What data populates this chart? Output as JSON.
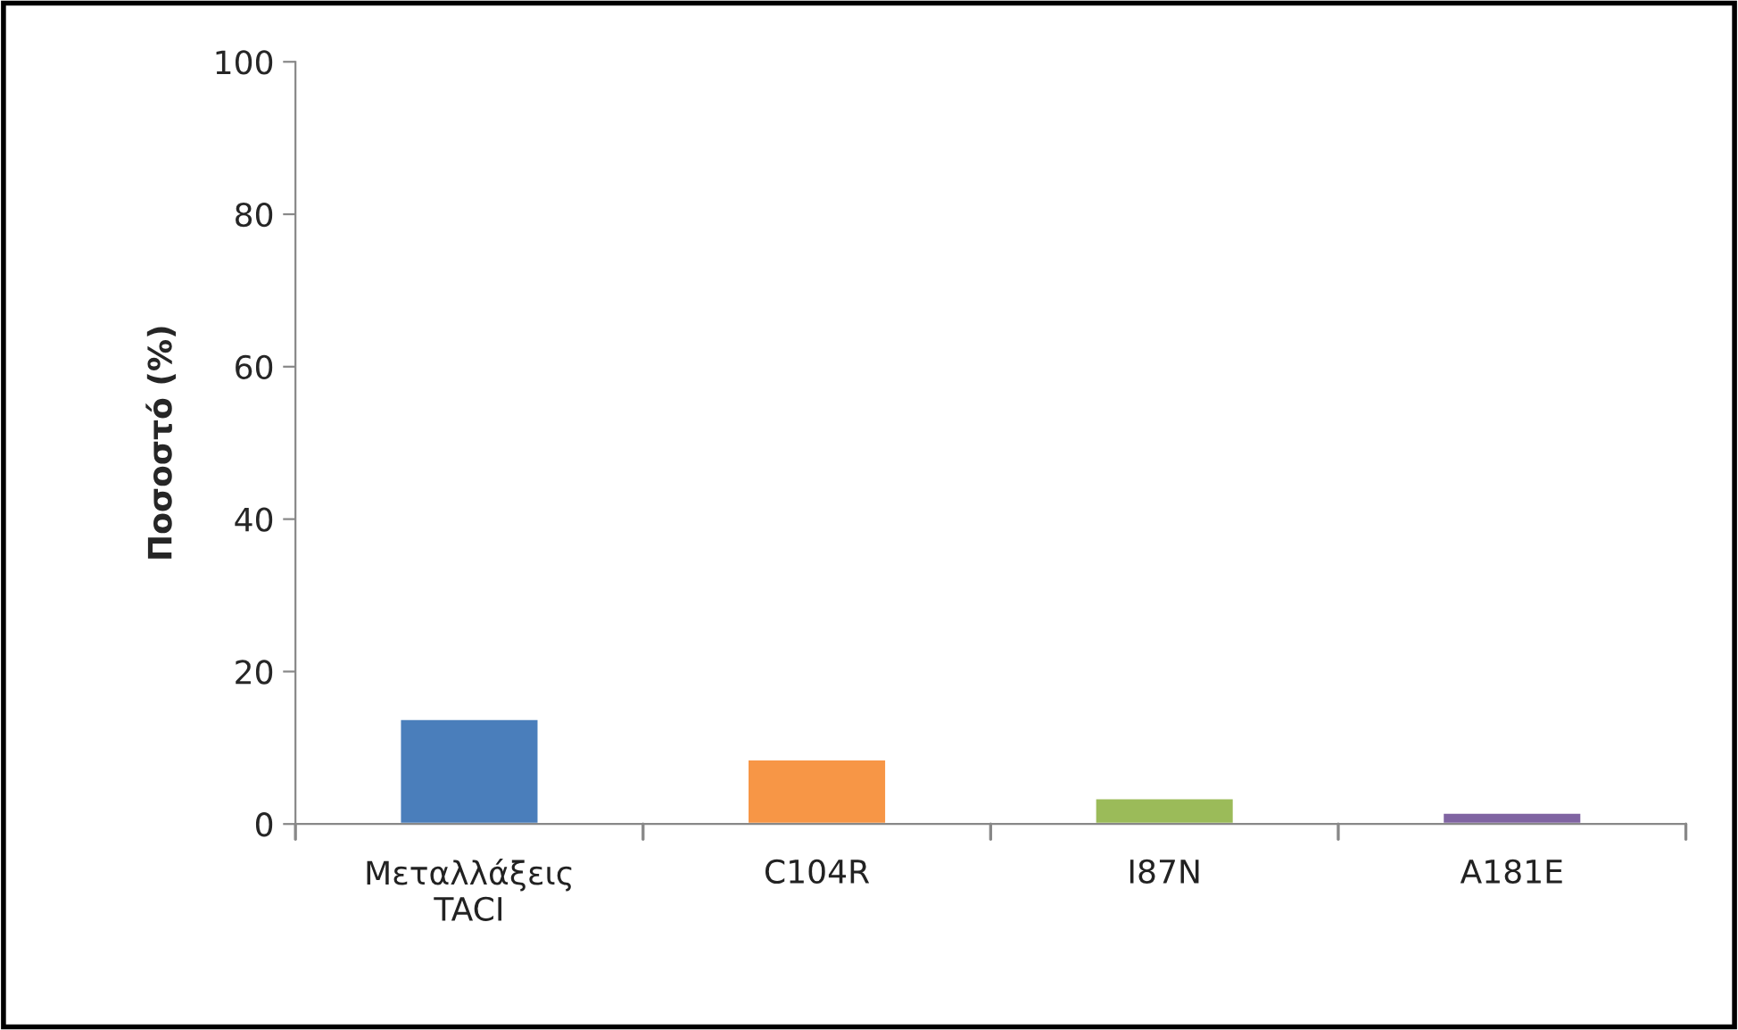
{
  "chart_data": {
    "type": "bar",
    "ylabel": "Ποσοστό (%)",
    "categories": [
      "Μεταλλάξεις\nTACI",
      "C104R",
      "I87N",
      "A181E"
    ],
    "values": [
      13.8,
      8.5,
      3.4,
      1.5
    ],
    "colors": [
      "#4a7ebb",
      "#f79646",
      "#9bbb59",
      "#8064a2"
    ],
    "ylim": [
      0,
      100
    ],
    "yticks": [
      0,
      20,
      40,
      60,
      80,
      100
    ],
    "grid": false,
    "legend": false
  }
}
